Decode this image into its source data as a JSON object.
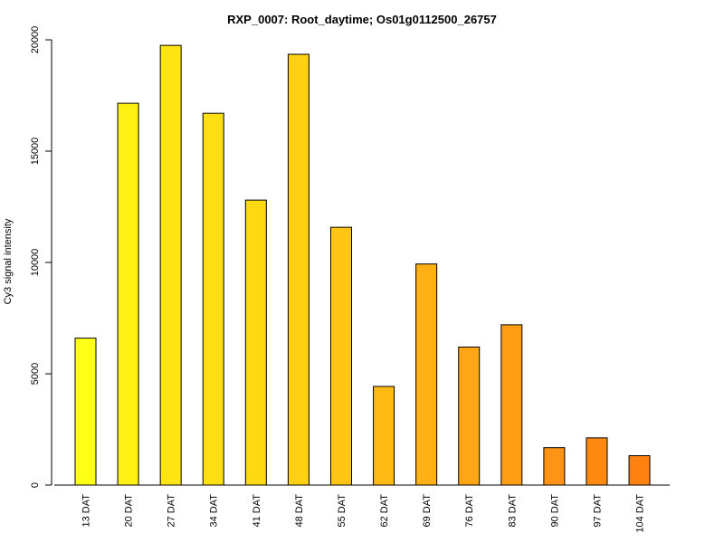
{
  "chart_data": {
    "type": "bar",
    "title": "RXP_0007: Root_daytime; Os01g0112500_26757",
    "xlabel": "",
    "ylabel": "Cy3 signal intensity",
    "ylim": [
      0,
      20000
    ],
    "yticks": [
      0,
      5000,
      10000,
      15000,
      20000
    ],
    "grid": false,
    "categories": [
      "13 DAT",
      "20 DAT",
      "27 DAT",
      "34 DAT",
      "41 DAT",
      "48 DAT",
      "55 DAT",
      "62 DAT",
      "69 DAT",
      "76 DAT",
      "83 DAT",
      "90 DAT",
      "97 DAT",
      "104 DAT"
    ],
    "values": [
      6600,
      17150,
      19750,
      16700,
      12800,
      19350,
      11580,
      4430,
      9930,
      6200,
      7200,
      1680,
      2120,
      1320
    ],
    "colors": [
      "#FFFF18",
      "#FFF014",
      "#FFE612",
      "#FFDE12",
      "#FFD912",
      "#FFD112",
      "#FFC514",
      "#FFBA14",
      "#FFB014",
      "#FFA616",
      "#FF9E14",
      "#FF9316",
      "#FF8A12",
      "#FF8210"
    ]
  }
}
